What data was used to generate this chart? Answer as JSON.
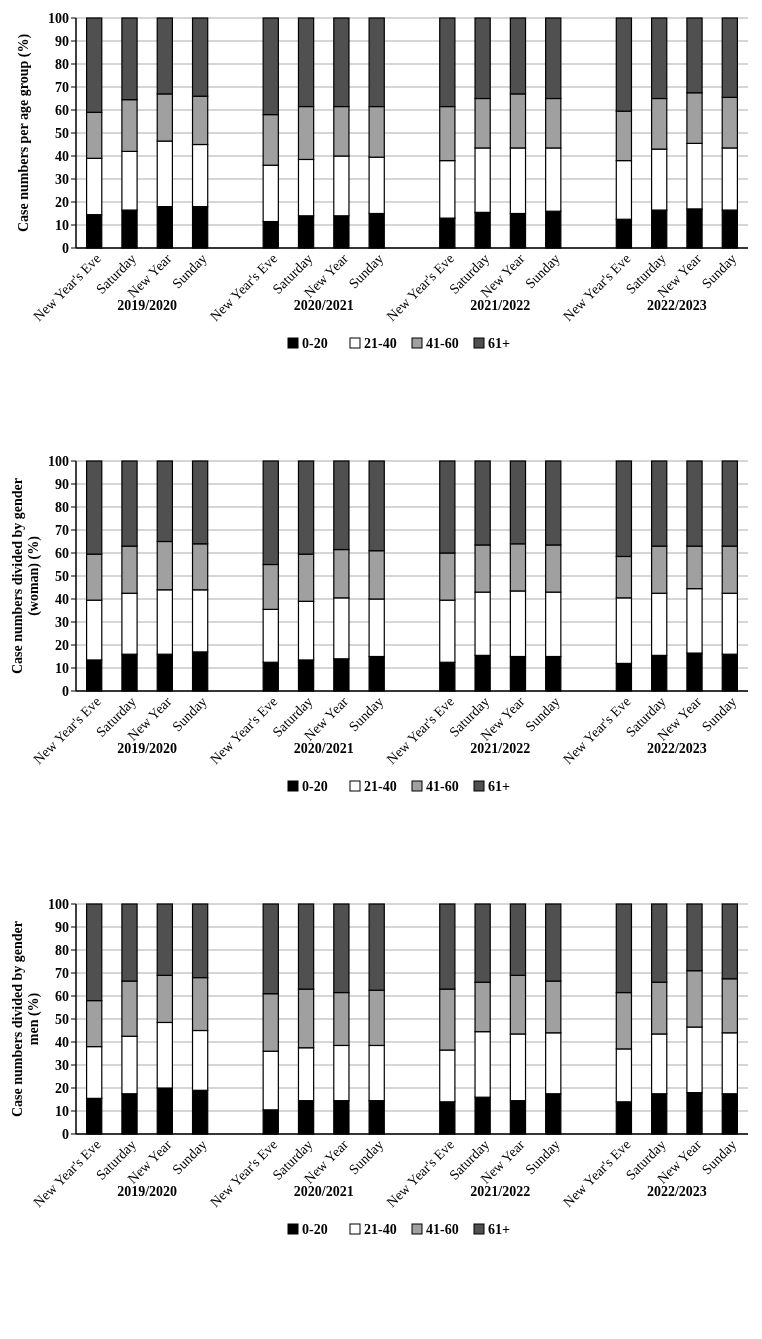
{
  "chart_data": [
    {
      "type": "bar",
      "stacked": true,
      "ylabel": "Case numbers per age group (%)",
      "categories": [
        "New Year's Eve",
        "Saturday",
        "New Year",
        "Sunday",
        null,
        "New Year's Eve",
        "Saturday",
        "New Year",
        "Sunday",
        null,
        "New Year's Eve",
        "Saturday",
        "New Year",
        "Sunday",
        null,
        "New Year's Eve",
        "Saturday",
        "New Year",
        "Sunday"
      ],
      "series": [
        {
          "name": "0-20",
          "color": "#000000",
          "values": [
            14.5,
            16.5,
            18,
            18,
            null,
            11.5,
            14,
            14,
            15,
            null,
            13,
            15.5,
            15,
            16,
            null,
            12.5,
            16.5,
            17,
            16.5
          ]
        },
        {
          "name": "21-40",
          "color": "#ffffff",
          "values": [
            24.5,
            25.5,
            28.5,
            27,
            null,
            24.5,
            24.5,
            26,
            24.5,
            null,
            25,
            28,
            28.5,
            27.5,
            null,
            25.5,
            26.5,
            28.5,
            27
          ]
        },
        {
          "name": "41-60",
          "color": "#a0a0a0",
          "values": [
            20,
            22.5,
            20.5,
            21,
            null,
            22,
            23,
            21.5,
            22,
            null,
            23.5,
            21.5,
            23.5,
            21.5,
            null,
            21.5,
            22,
            22,
            22
          ]
        },
        {
          "name": "61+",
          "color": "#505050",
          "values": [
            41,
            35.5,
            33,
            34,
            null,
            42,
            38.5,
            38.5,
            38.5,
            null,
            38.5,
            35,
            33,
            35,
            null,
            40.5,
            35,
            32.5,
            34.5
          ]
        }
      ],
      "ylim": [
        0,
        100
      ],
      "yticks": [
        0,
        10,
        20,
        30,
        40,
        50,
        60,
        70,
        80,
        90,
        100
      ],
      "grid": "y",
      "legend": "bottom",
      "annotations": [
        "2019/2020",
        "2020/2021",
        "2021/2022",
        "2022/2023"
      ]
    },
    {
      "type": "bar",
      "stacked": true,
      "ylabel": "Case numbers divided by gender\n(woman) (%)",
      "categories": [
        "New Year's Eve",
        "Saturday",
        "New Year",
        "Sunday",
        null,
        "New Year's Eve",
        "Saturday",
        "New Year",
        "Sunday",
        null,
        "New Year's Eve",
        "Saturday",
        "New Year",
        "Sunday",
        null,
        "New Year's Eve",
        "Saturday",
        "New Year",
        "Sunday"
      ],
      "series": [
        {
          "name": "0-20",
          "color": "#000000",
          "values": [
            13.5,
            16,
            16,
            17,
            null,
            12.5,
            13.5,
            14,
            15,
            null,
            12.5,
            15.5,
            15,
            15,
            null,
            12,
            15.5,
            16.5,
            16
          ]
        },
        {
          "name": "21-40",
          "color": "#ffffff",
          "values": [
            26,
            26.5,
            28,
            27,
            null,
            23,
            25.5,
            26.5,
            25,
            null,
            27,
            27.5,
            28.5,
            28,
            null,
            28.5,
            27,
            28,
            26.5
          ]
        },
        {
          "name": "41-60",
          "color": "#a0a0a0",
          "values": [
            20,
            20.5,
            21,
            20,
            null,
            19.5,
            20.5,
            21,
            21,
            null,
            20.5,
            20.5,
            20.5,
            20.5,
            null,
            18,
            20.5,
            18.5,
            20.5
          ]
        },
        {
          "name": "61+",
          "color": "#505050",
          "values": [
            40.5,
            37,
            35,
            36,
            null,
            45,
            40.5,
            38.5,
            39,
            null,
            40,
            36.5,
            36,
            36.5,
            null,
            41.5,
            37,
            37,
            37
          ]
        }
      ],
      "ylim": [
        0,
        100
      ],
      "yticks": [
        0,
        10,
        20,
        30,
        40,
        50,
        60,
        70,
        80,
        90,
        100
      ],
      "grid": "y",
      "legend": "bottom",
      "annotations": [
        "2019/2020",
        "2020/2021",
        "2021/2022",
        "2022/2023"
      ]
    },
    {
      "type": "bar",
      "stacked": true,
      "ylabel": "Case numbers divided by gender\nmen (%)",
      "categories": [
        "New Year's Eve",
        "Saturday",
        "New Year",
        "Sunday",
        null,
        "New Year's Eve",
        "Saturday",
        "New Year",
        "Sunday",
        null,
        "New Year's Eve",
        "Saturday",
        "New Year",
        "Sunday",
        null,
        "New Year's Eve",
        "Saturday",
        "New Year",
        "Sunday"
      ],
      "series": [
        {
          "name": "0-20",
          "color": "#000000",
          "values": [
            15.5,
            17.5,
            20,
            19,
            null,
            10.5,
            14.5,
            14.5,
            14.5,
            null,
            14,
            16,
            14.5,
            17.5,
            null,
            14,
            17.5,
            18,
            17.5
          ]
        },
        {
          "name": "21-40",
          "color": "#ffffff",
          "values": [
            22.5,
            25,
            28.5,
            26,
            null,
            25.5,
            23,
            24,
            24,
            null,
            22.5,
            28.5,
            29,
            26.5,
            null,
            23,
            26,
            28.5,
            26.5
          ]
        },
        {
          "name": "41-60",
          "color": "#a0a0a0",
          "values": [
            20,
            24,
            20.5,
            23,
            null,
            25,
            25.5,
            23,
            24,
            null,
            26.5,
            21.5,
            25.5,
            22.5,
            null,
            24.5,
            22.5,
            24.5,
            23.5
          ]
        },
        {
          "name": "61+",
          "color": "#505050",
          "values": [
            42,
            33.5,
            31,
            32,
            null,
            39,
            37,
            38.5,
            37.5,
            null,
            37,
            34,
            31,
            33.5,
            null,
            38.5,
            34,
            29,
            32.5
          ]
        }
      ],
      "ylim": [
        0,
        100
      ],
      "yticks": [
        0,
        10,
        20,
        30,
        40,
        50,
        60,
        70,
        80,
        90,
        100
      ],
      "grid": "y",
      "legend": "bottom",
      "annotations": [
        "2019/2020",
        "2020/2021",
        "2021/2022",
        "2022/2023"
      ]
    }
  ]
}
